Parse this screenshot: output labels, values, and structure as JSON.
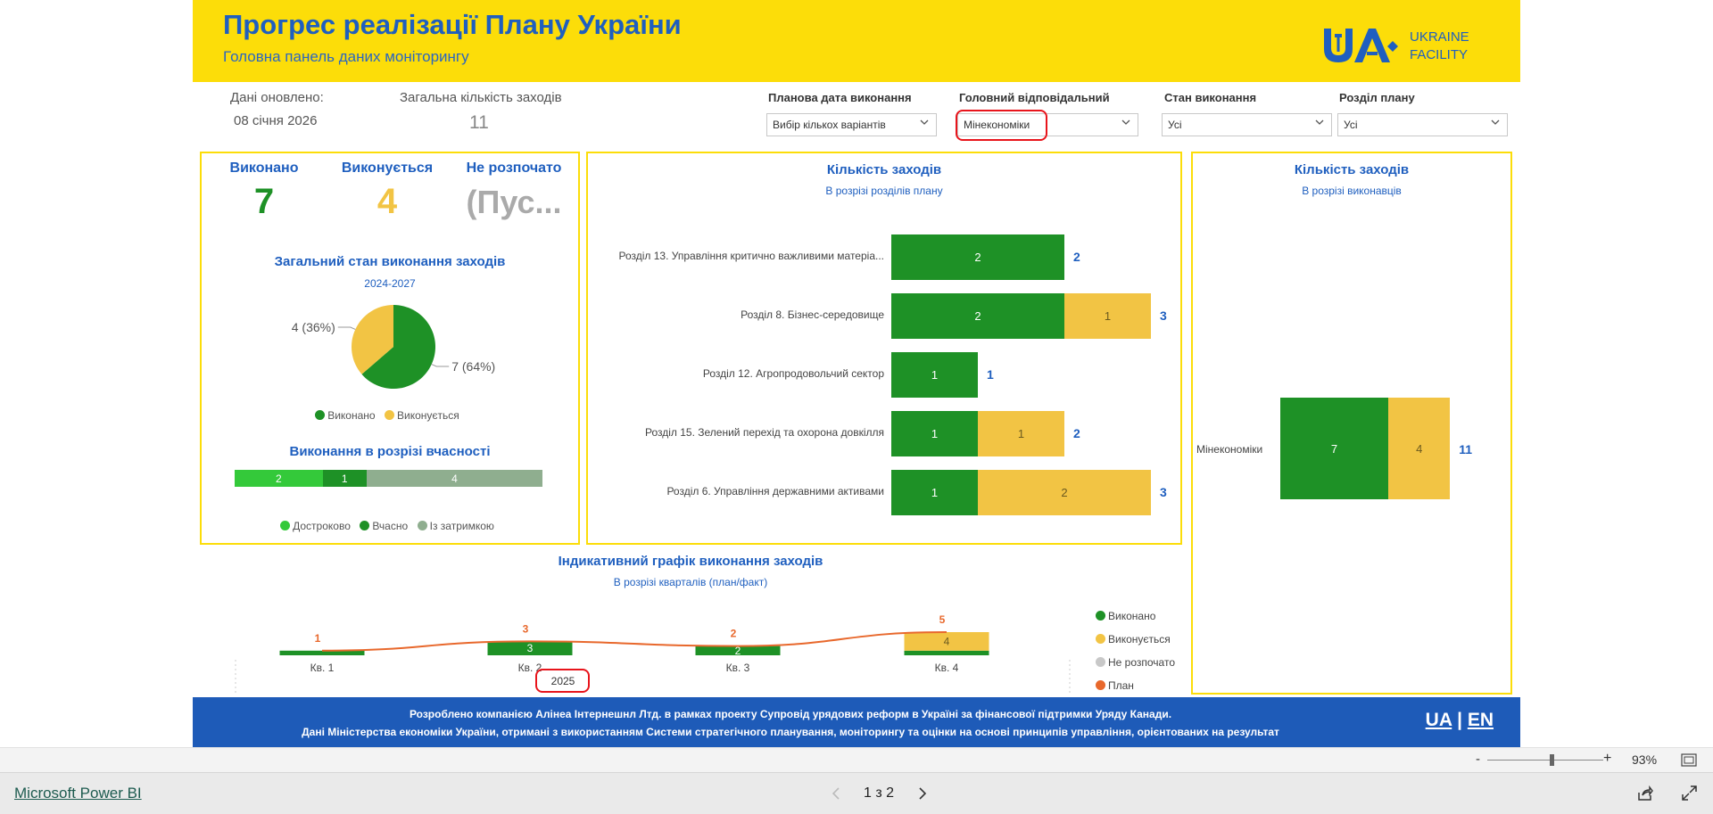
{
  "header": {
    "title": "Прогрес реалізації Плану України",
    "subtitle": "Головна панель даних моніторингу",
    "logo_text_1": "UKRAINE",
    "logo_text_2": "FACILITY"
  },
  "info": {
    "updated_label": "Дані оновлено:",
    "updated_value": "08 січня 2026",
    "total_label": "Загальна кількість заходів",
    "total_value": "11"
  },
  "filters": [
    {
      "label": "Планова дата виконання",
      "value": "Вибір кількох варіантів"
    },
    {
      "label": "Головний відповідальний",
      "value": "Мінекономіки"
    },
    {
      "label": "Стан виконання",
      "value": "Усі"
    },
    {
      "label": "Розділ плану",
      "value": "Усі"
    }
  ],
  "kpis": {
    "done_label": "Виконано",
    "done_value": "7",
    "progress_label": "Виконується",
    "progress_value": "4",
    "notstarted_label": "Не розпочато",
    "notstarted_value": "(Пус..."
  },
  "colors": {
    "done": "#1e9126",
    "progress": "#f2c444",
    "notstarted": "#c8c8c8",
    "plan": "#e8682c",
    "early": "#34c93a",
    "ontime": "#1e9126",
    "delayed": "#8fae8f",
    "blue": "#1f5fbf",
    "yellow": "#fcdd09"
  },
  "pie": {
    "title": "Загальний стан виконання заходів",
    "subtitle": "2024-2027",
    "legend": [
      "Виконано",
      "Виконується"
    ],
    "labels": [
      "7 (64%)",
      "4 (36%)"
    ]
  },
  "timeliness": {
    "title": "Виконання в розрізі вчасності",
    "legend": [
      "Достроково",
      "Вчасно",
      "Із затримкою"
    ]
  },
  "sections_chart": {
    "title": "Кількість заходів",
    "subtitle": "В розрізі розділів плану"
  },
  "executors_chart": {
    "title": "Кількість заходів",
    "subtitle": "В розрізі виконавців"
  },
  "quarterly": {
    "title": "Індикативний графік виконання заходів",
    "subtitle": "В розрізі кварталів (план/факт)",
    "year": "2025",
    "legend": [
      "Виконано",
      "Виконується",
      "Не розпочато",
      "План"
    ]
  },
  "chart_data": [
    {
      "type": "pie",
      "title": "Загальний стан виконання заходів",
      "subtitle": "2024-2027",
      "slices": [
        {
          "name": "Виконано",
          "value": 7,
          "label": "7 (64%)"
        },
        {
          "name": "Виконується",
          "value": 4,
          "label": "4 (36%)"
        }
      ],
      "legend": "bottom"
    },
    {
      "type": "bar",
      "orientation": "horizontal-stacked",
      "title": "Виконання в розрізі вчасності",
      "series": [
        {
          "name": "Достроково",
          "values": [
            2
          ]
        },
        {
          "name": "Вчасно",
          "values": [
            1
          ]
        },
        {
          "name": "Із затримкою",
          "values": [
            4
          ]
        }
      ],
      "legend": "bottom"
    },
    {
      "type": "bar",
      "orientation": "horizontal-stacked",
      "title": "Кількість заходів",
      "subtitle": "В розрізі розділів плану",
      "categories": [
        "Розділ 13. Управління критично важливими матеріа...",
        "Розділ 8. Бізнес-середовище",
        "Розділ 12. Агропродовольчий сектор",
        "Розділ 15. Зелений перехід та охорона довкілля",
        "Розділ 6. Управління державними активами"
      ],
      "series": [
        {
          "name": "Виконано",
          "values": [
            2,
            2,
            1,
            1,
            1
          ]
        },
        {
          "name": "Виконується",
          "values": [
            0,
            1,
            0,
            1,
            2
          ]
        }
      ],
      "totals": [
        2,
        3,
        1,
        2,
        3
      ]
    },
    {
      "type": "bar",
      "orientation": "horizontal-stacked",
      "title": "Кількість заходів",
      "subtitle": "В розрізі виконавців",
      "categories": [
        "Мінекономіки"
      ],
      "series": [
        {
          "name": "Виконано",
          "values": [
            7
          ]
        },
        {
          "name": "Виконується",
          "values": [
            4
          ]
        }
      ],
      "totals": [
        11
      ]
    },
    {
      "type": "bar",
      "title": "Індикативний графік виконання заходів",
      "subtitle": "В розрізі кварталів (план/факт)",
      "categories": [
        "Кв. 1",
        "Кв. 2",
        "Кв. 3",
        "Кв. 4"
      ],
      "year": "2025",
      "series": [
        {
          "name": "Виконано",
          "values": [
            1,
            3,
            2,
            1
          ]
        },
        {
          "name": "Виконується",
          "values": [
            0,
            0,
            0,
            4
          ]
        },
        {
          "name": "План",
          "type": "line",
          "values": [
            1,
            3,
            2,
            5
          ]
        }
      ],
      "legend": "right"
    }
  ],
  "footer": {
    "line1": "Розроблено компанією Алінеа Інтернешнл Лтд. в рамках проекту Супровід урядових реформ в Україні за фінансової підтримки Уряду Канади.",
    "line2": "Дані Міністерства економіки України, отримані з використанням Системи стратегічного планування, моніторингу та оцінки на основі принципів управління, орієнтованих на результат",
    "lang_ua": "UA",
    "lang_sep": "|",
    "lang_en": "EN"
  },
  "zoom": {
    "minus": "-",
    "plus": "+",
    "value": "93%",
    "level": 0.55
  },
  "bottom": {
    "brand": "Microsoft Power BI",
    "page_indicator": "1 з 2"
  }
}
